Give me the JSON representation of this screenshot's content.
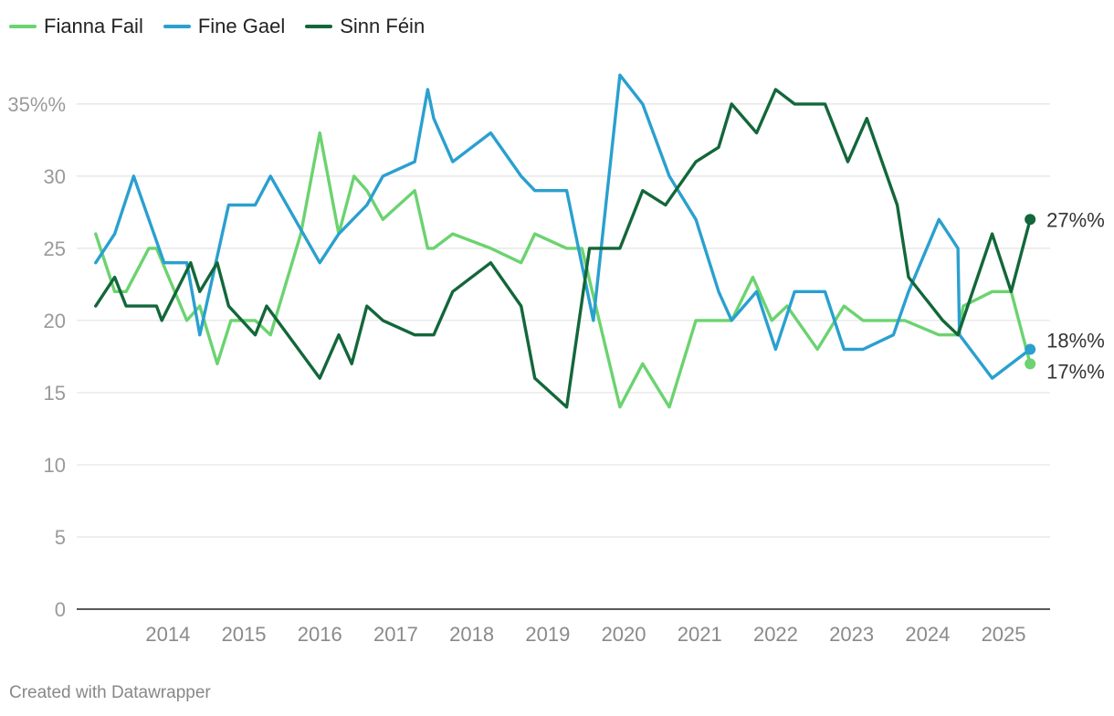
{
  "colors": {
    "fianna_fail": "#6bd36f",
    "fine_gael": "#2aa0cf",
    "sinn_fein": "#13673a",
    "grid": "#e3e3e3",
    "axis": "#222222",
    "tick_label": "#9a9a9a",
    "end_label": "#333333"
  },
  "footer": "Created with Datawrapper",
  "chart_data": {
    "type": "line",
    "title": "",
    "xlabel": "",
    "ylabel": "",
    "ylim": [
      0,
      37.5
    ],
    "xlim": [
      2013.3,
      2026.0
    ],
    "y_ticks": [
      {
        "value": 0,
        "label": "0"
      },
      {
        "value": 5,
        "label": "5"
      },
      {
        "value": 10,
        "label": "10"
      },
      {
        "value": 15,
        "label": "15"
      },
      {
        "value": 20,
        "label": "20"
      },
      {
        "value": 25,
        "label": "25"
      },
      {
        "value": 30,
        "label": "30"
      },
      {
        "value": 35,
        "label": "35%%"
      }
    ],
    "x_ticks": [
      {
        "value": 2014,
        "label": "2014"
      },
      {
        "value": 2015,
        "label": "2015"
      },
      {
        "value": 2016,
        "label": "2016"
      },
      {
        "value": 2017,
        "label": "2017"
      },
      {
        "value": 2018,
        "label": "2018"
      },
      {
        "value": 2019,
        "label": "2019"
      },
      {
        "value": 2020,
        "label": "2020"
      },
      {
        "value": 2021,
        "label": "2021"
      },
      {
        "value": 2022,
        "label": "2022"
      },
      {
        "value": 2023,
        "label": "2023"
      },
      {
        "value": 2024,
        "label": "2024"
      },
      {
        "value": 2025,
        "label": "2025"
      }
    ],
    "series": [
      {
        "key": "fianna_fail",
        "name": "Fianna Fail",
        "end_label": "17%%",
        "points": [
          [
            2013.55,
            26
          ],
          [
            2013.8,
            22
          ],
          [
            2013.95,
            22
          ],
          [
            2014.25,
            25
          ],
          [
            2014.35,
            25
          ],
          [
            2014.75,
            20
          ],
          [
            2014.92,
            21
          ],
          [
            2015.15,
            17
          ],
          [
            2015.33,
            20
          ],
          [
            2015.65,
            20
          ],
          [
            2015.85,
            19
          ],
          [
            2016.25,
            26
          ],
          [
            2016.5,
            33
          ],
          [
            2016.75,
            26
          ],
          [
            2016.95,
            30
          ],
          [
            2017.12,
            29
          ],
          [
            2017.33,
            27
          ],
          [
            2017.75,
            29
          ],
          [
            2017.92,
            25
          ],
          [
            2018.0,
            25
          ],
          [
            2018.25,
            26
          ],
          [
            2018.75,
            25
          ],
          [
            2019.15,
            24
          ],
          [
            2019.33,
            26
          ],
          [
            2019.75,
            25
          ],
          [
            2019.95,
            25
          ],
          [
            2020.45,
            14
          ],
          [
            2020.75,
            17
          ],
          [
            2021.1,
            14
          ],
          [
            2021.45,
            20
          ],
          [
            2021.92,
            20
          ],
          [
            2022.2,
            23
          ],
          [
            2022.45,
            20
          ],
          [
            2022.65,
            21
          ],
          [
            2023.05,
            18
          ],
          [
            2023.4,
            21
          ],
          [
            2023.65,
            20
          ],
          [
            2024.2,
            20
          ],
          [
            2024.65,
            19
          ],
          [
            2024.9,
            19
          ],
          [
            2024.97,
            21
          ],
          [
            2025.35,
            22
          ],
          [
            2025.6,
            22
          ],
          [
            2025.85,
            17
          ]
        ]
      },
      {
        "key": "fine_gael",
        "name": "Fine Gael",
        "end_label": "18%%",
        "points": [
          [
            2013.55,
            24
          ],
          [
            2013.8,
            26
          ],
          [
            2014.05,
            30
          ],
          [
            2014.45,
            24
          ],
          [
            2014.75,
            24
          ],
          [
            2014.92,
            19
          ],
          [
            2015.3,
            28
          ],
          [
            2015.65,
            28
          ],
          [
            2015.85,
            30
          ],
          [
            2016.5,
            24
          ],
          [
            2016.75,
            26
          ],
          [
            2017.12,
            28
          ],
          [
            2017.33,
            30
          ],
          [
            2017.75,
            31
          ],
          [
            2017.92,
            36
          ],
          [
            2018.0,
            34
          ],
          [
            2018.25,
            31
          ],
          [
            2018.75,
            33
          ],
          [
            2019.15,
            30
          ],
          [
            2019.33,
            29
          ],
          [
            2019.75,
            29
          ],
          [
            2020.1,
            20
          ],
          [
            2020.45,
            37
          ],
          [
            2020.75,
            35
          ],
          [
            2021.1,
            30
          ],
          [
            2021.45,
            27
          ],
          [
            2021.75,
            22
          ],
          [
            2021.92,
            20
          ],
          [
            2022.25,
            22
          ],
          [
            2022.5,
            18
          ],
          [
            2022.75,
            22
          ],
          [
            2023.15,
            22
          ],
          [
            2023.4,
            18
          ],
          [
            2023.65,
            18
          ],
          [
            2024.05,
            19
          ],
          [
            2024.25,
            22
          ],
          [
            2024.65,
            27
          ],
          [
            2024.9,
            25
          ],
          [
            2024.92,
            19
          ],
          [
            2025.35,
            16
          ],
          [
            2025.85,
            18
          ]
        ]
      },
      {
        "key": "sinn_fein",
        "name": "Sinn Féin",
        "end_label": "27%%",
        "points": [
          [
            2013.55,
            21
          ],
          [
            2013.8,
            23
          ],
          [
            2013.95,
            21
          ],
          [
            2014.35,
            21
          ],
          [
            2014.42,
            20
          ],
          [
            2014.8,
            24
          ],
          [
            2014.92,
            22
          ],
          [
            2015.15,
            24
          ],
          [
            2015.3,
            21
          ],
          [
            2015.65,
            19
          ],
          [
            2015.8,
            21
          ],
          [
            2016.5,
            16
          ],
          [
            2016.75,
            19
          ],
          [
            2016.92,
            17
          ],
          [
            2017.12,
            21
          ],
          [
            2017.33,
            20
          ],
          [
            2017.75,
            19
          ],
          [
            2018.0,
            19
          ],
          [
            2018.25,
            22
          ],
          [
            2018.75,
            24
          ],
          [
            2019.15,
            21
          ],
          [
            2019.33,
            16
          ],
          [
            2019.75,
            14
          ],
          [
            2020.05,
            25
          ],
          [
            2020.45,
            25
          ],
          [
            2020.75,
            29
          ],
          [
            2021.05,
            28
          ],
          [
            2021.45,
            31
          ],
          [
            2021.75,
            32
          ],
          [
            2021.92,
            35
          ],
          [
            2022.25,
            33
          ],
          [
            2022.5,
            36
          ],
          [
            2022.75,
            35
          ],
          [
            2023.15,
            35
          ],
          [
            2023.45,
            31
          ],
          [
            2023.7,
            34
          ],
          [
            2024.1,
            28
          ],
          [
            2024.25,
            23
          ],
          [
            2024.7,
            20
          ],
          [
            2024.9,
            19
          ],
          [
            2025.35,
            26
          ],
          [
            2025.6,
            22
          ],
          [
            2025.85,
            27
          ]
        ]
      }
    ]
  }
}
